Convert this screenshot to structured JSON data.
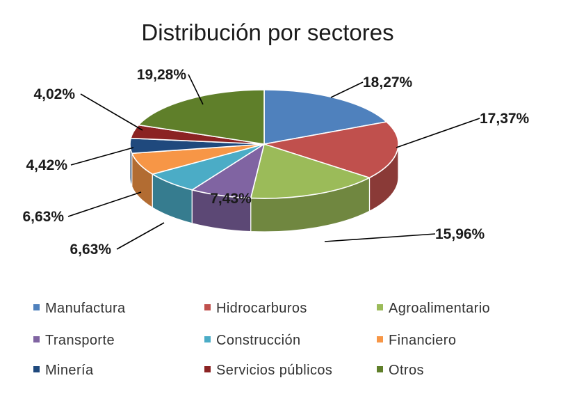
{
  "chart_data": {
    "type": "pie",
    "title": "Distribución por sectores",
    "categories": [
      "Manufactura",
      "Hidrocarburos",
      "Agroalimentario",
      "Transporte",
      "Construcción",
      "Financiero",
      "Minería",
      "Servicios públicos",
      "Otros"
    ],
    "values": [
      18.27,
      17.37,
      15.96,
      7.43,
      6.63,
      6.63,
      4.42,
      4.02,
      19.28
    ],
    "value_labels": [
      "18,27%",
      "17,37%",
      "15,96%",
      "7,43%",
      "6,63%",
      "6,63%",
      "4,42%",
      "4,02%",
      "19,28%"
    ],
    "colors": [
      "#4F81BD",
      "#C0504D",
      "#9BBB59",
      "#8064A2",
      "#4BACC6",
      "#F79646",
      "#1F497D",
      "#8B2323",
      "#5F7F2A"
    ],
    "style": "3d",
    "legend_position": "bottom"
  }
}
